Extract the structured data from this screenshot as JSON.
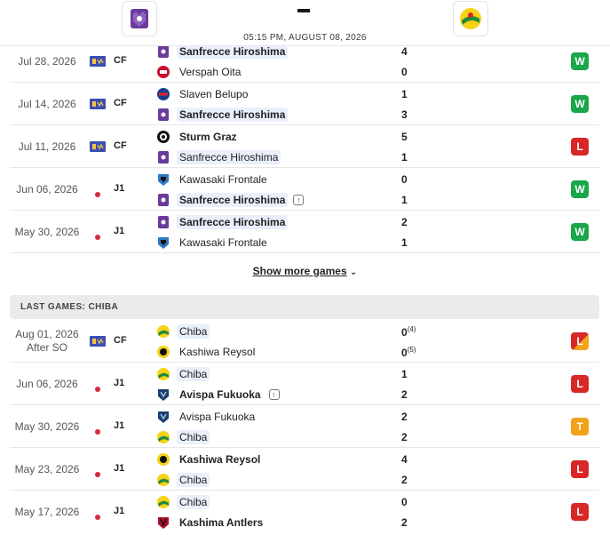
{
  "header": {
    "datetime": "05:15 PM, AUGUST 08, 2026",
    "score_separator": "-"
  },
  "hiroshima_games": [
    {
      "date": "Jul 28, 2026",
      "comp": "CF",
      "comp_icon": "cf-flag-icon",
      "team1": "Sanfrecce Hiroshima",
      "team1_bold": true,
      "team1_hl": true,
      "team1_logo": "sanfrecce-logo-icon",
      "team2": "Verspah Oita",
      "team2_bold": false,
      "team2_hl": false,
      "team2_logo": "verspah-logo-icon",
      "score1": "4",
      "score2": "0",
      "result": "W"
    },
    {
      "date": "Jul 14, 2026",
      "comp": "CF",
      "comp_icon": "cf-flag-icon",
      "team1": "Slaven Belupo",
      "team1_bold": false,
      "team1_hl": false,
      "team1_logo": "slaven-logo-icon",
      "team2": "Sanfrecce Hiroshima",
      "team2_bold": true,
      "team2_hl": true,
      "team2_logo": "sanfrecce-logo-icon",
      "score1": "1",
      "score2": "3",
      "result": "W"
    },
    {
      "date": "Jul 11, 2026",
      "comp": "CF",
      "comp_icon": "cf-flag-icon",
      "team1": "Sturm Graz",
      "team1_bold": true,
      "team1_hl": false,
      "team1_logo": "sturm-logo-icon",
      "team2": "Sanfrecce Hiroshima",
      "team2_bold": false,
      "team2_hl": true,
      "team2_logo": "sanfrecce-logo-icon",
      "score1": "5",
      "score2": "1",
      "result": "L"
    },
    {
      "date": "Jun 06, 2026",
      "comp": "J1",
      "comp_icon": "japan-flag-icon",
      "team1": "Kawasaki Frontale",
      "team1_bold": false,
      "team1_hl": false,
      "team1_logo": "kawasaki-logo-icon",
      "team2": "Sanfrecce Hiroshima",
      "team2_bold": true,
      "team2_hl": true,
      "team2_logo": "sanfrecce-logo-icon",
      "team2_arrow": true,
      "score1": "0",
      "score2": "1",
      "result": "W"
    },
    {
      "date": "May 30, 2026",
      "comp": "J1",
      "comp_icon": "japan-flag-icon",
      "team1": "Sanfrecce Hiroshima",
      "team1_bold": true,
      "team1_hl": true,
      "team1_logo": "sanfrecce-logo-icon",
      "team2": "Kawasaki Frontale",
      "team2_bold": false,
      "team2_hl": false,
      "team2_logo": "kawasaki-logo-icon",
      "score1": "2",
      "score2": "1",
      "result": "W"
    }
  ],
  "show_more_label": "Show more games",
  "chiba_section_title": "LAST GAMES: CHIBA",
  "chiba_games": [
    {
      "date": "Aug 01, 2026",
      "date2": "After SO",
      "comp": "CF",
      "comp_icon": "cf-flag-icon",
      "team1": "Chiba",
      "team1_bold": false,
      "team1_hl": true,
      "team1_logo": "chiba-logo-icon",
      "team2": "Kashiwa Reysol",
      "team2_bold": false,
      "team2_hl": false,
      "team2_logo": "kashiwa-logo-icon",
      "score1": "0",
      "pen1": "(4)",
      "score2": "0",
      "pen2": "(5)",
      "result": "L",
      "result_style": "half"
    },
    {
      "date": "Jun 06, 2026",
      "comp": "J1",
      "comp_icon": "japan-flag-icon",
      "team1": "Chiba",
      "team1_bold": false,
      "team1_hl": true,
      "team1_logo": "chiba-logo-icon",
      "team2": "Avispa Fukuoka",
      "team2_bold": true,
      "team2_hl": false,
      "team2_logo": "avispa-logo-icon",
      "team2_arrow": true,
      "score1": "1",
      "score2": "2",
      "result": "L"
    },
    {
      "date": "May 30, 2026",
      "comp": "J1",
      "comp_icon": "japan-flag-icon",
      "team1": "Avispa Fukuoka",
      "team1_bold": false,
      "team1_hl": false,
      "team1_logo": "avispa-logo-icon",
      "team2": "Chiba",
      "team2_bold": false,
      "team2_hl": true,
      "team2_logo": "chiba-logo-icon",
      "score1": "2",
      "score2": "2",
      "result": "T"
    },
    {
      "date": "May 23, 2026",
      "comp": "J1",
      "comp_icon": "japan-flag-icon",
      "team1": "Kashiwa Reysol",
      "team1_bold": true,
      "team1_hl": false,
      "team1_logo": "kashiwa-logo-icon",
      "team2": "Chiba",
      "team2_bold": false,
      "team2_hl": true,
      "team2_logo": "chiba-logo-icon",
      "score1": "4",
      "score2": "2",
      "result": "L"
    },
    {
      "date": "May 17, 2026",
      "comp": "J1",
      "comp_icon": "japan-flag-icon",
      "team1": "Chiba",
      "team1_bold": false,
      "team1_hl": true,
      "team1_logo": "chiba-logo-icon",
      "team2": "Kashima Antlers",
      "team2_bold": true,
      "team2_hl": false,
      "team2_logo": "kashima-logo-icon",
      "score1": "0",
      "score2": "2",
      "result": "L"
    }
  ],
  "colors": {
    "win": "#1aa64a",
    "loss": "#d92626",
    "tie": "#f2a21b",
    "highlight": "#e9effb"
  }
}
